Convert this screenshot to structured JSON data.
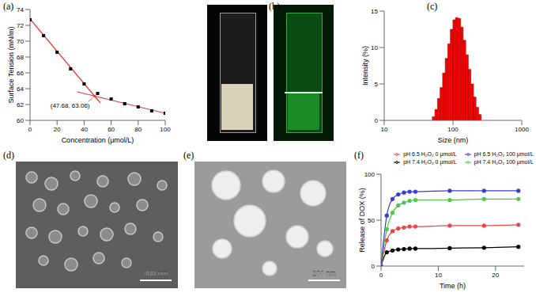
{
  "chart_data": [
    {
      "type": "scatter",
      "label": "(a)",
      "x_label": "Concentration (μmol/L)",
      "y_label": "Surface Tension (mN/m)",
      "xlim": [
        0,
        100
      ],
      "xticks": [
        0,
        20,
        40,
        60,
        80,
        100
      ],
      "ylim": [
        60,
        74
      ],
      "yticks": [
        60,
        62,
        64,
        66,
        68,
        70,
        72,
        74
      ],
      "series": [
        {
          "type": "scatter",
          "marker": "square",
          "color": "#000000",
          "x": [
            0,
            10,
            20,
            30,
            40,
            50,
            60,
            70,
            80,
            90,
            100
          ],
          "values": [
            72.7,
            70.7,
            68.6,
            66.5,
            64.6,
            63.4,
            62.7,
            62.1,
            61.7,
            61.2,
            60.9
          ]
        },
        {
          "type": "line",
          "color": "#e53935",
          "x": [
            0,
            52
          ],
          "values": [
            72.8,
            62.2
          ]
        },
        {
          "type": "line",
          "color": "#e53935",
          "x": [
            35,
            100
          ],
          "values": [
            63.6,
            60.9
          ]
        }
      ],
      "annotations": [
        {
          "text": "(47.68, 63.06)",
          "x": 47.68,
          "y": 63.06
        }
      ]
    },
    {
      "type": "histogram",
      "label": "(c)",
      "x_label": "Size (nm)",
      "y_label": "Intensity (%)",
      "log": "x",
      "xlim": [
        10,
        1000
      ],
      "xticks": [
        10,
        100,
        1000
      ],
      "ylim": [
        0,
        15
      ],
      "yticks": [
        0,
        5,
        10,
        15
      ],
      "color": "#ff0000",
      "bins": [
        50,
        54.5,
        59.4,
        64.8,
        70.6,
        77.0,
        83.9,
        91.4,
        99.7,
        108.6,
        118.4,
        129.1,
        140.7,
        153.3,
        167.1,
        182.2,
        198.6,
        216.5,
        235.9,
        257.2
      ],
      "values": [
        0.5,
        1.5,
        3,
        4.5,
        6.5,
        8.5,
        10.5,
        12.5,
        13.8,
        14.1,
        14,
        12.8,
        11,
        9,
        7,
        5,
        3.2,
        1.8,
        0.8
      ]
    },
    {
      "type": "line",
      "label": "(f)",
      "x_label": "Time (h)",
      "y_label": "Release of DOX (%)",
      "xlim": [
        0,
        25
      ],
      "xticks": [
        0,
        10,
        20
      ],
      "ylim": [
        0,
        100
      ],
      "yticks": [
        0,
        50,
        100
      ],
      "legend": "top",
      "x": [
        0,
        1,
        2,
        3,
        4,
        5,
        6,
        12,
        18,
        24
      ],
      "series": [
        {
          "name": "pH 7.4 H₂O₂ 0 μmol/L",
          "color": "#000000",
          "marker": "circle",
          "values": [
            0,
            15,
            17,
            18,
            18.5,
            19,
            19,
            19.5,
            20,
            21
          ]
        },
        {
          "name": "pH 6.5 H₂O₂ 0 μmol/L",
          "color": "#e8474a",
          "marker": "circle",
          "values": [
            0,
            28,
            38,
            41,
            42,
            43,
            43,
            44,
            44,
            45
          ]
        },
        {
          "name": "pH 7.4 H₂O₂ 100 μmol/L",
          "color": "#4cc94a",
          "marker": "circle",
          "values": [
            0,
            40,
            58,
            66,
            69,
            71,
            72,
            72,
            73,
            73
          ]
        },
        {
          "name": "pH 6.5 H₂O₂ 100 μmol/L",
          "color": "#3b3bd6",
          "marker": "circle",
          "values": [
            0,
            55,
            73,
            78,
            80,
            81,
            81,
            82,
            82,
            82
          ]
        }
      ]
    }
  ],
  "images": [
    {
      "label": "(b)"
    },
    {
      "label": "(d)",
      "scale_bar": "400 nm"
    },
    {
      "label": "(e)",
      "scale_bar": "200 nm"
    }
  ]
}
